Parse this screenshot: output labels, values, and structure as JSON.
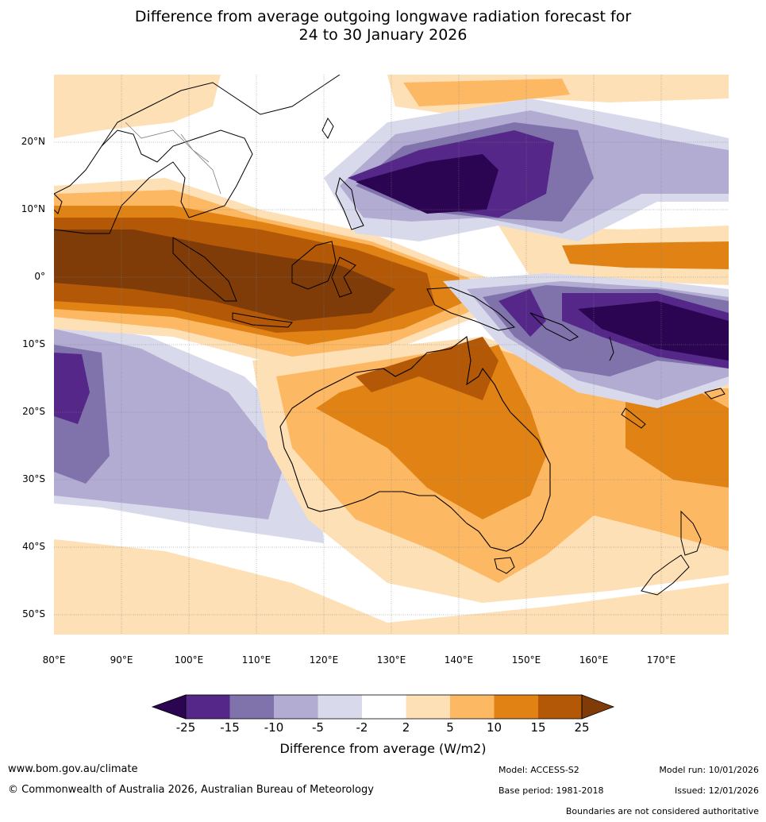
{
  "title": {
    "line1": "Difference from average outgoing longwave radiation forecast for",
    "line2": "24 to 30 January 2026"
  },
  "map": {
    "lat_labels": [
      "20°N",
      "10°N",
      "0°",
      "10°S",
      "20°S",
      "30°S",
      "40°S",
      "50°S"
    ],
    "lon_labels": [
      "80°E",
      "90°E",
      "100°E",
      "110°E",
      "120°E",
      "130°E",
      "140°E",
      "150°E",
      "160°E",
      "170°E"
    ],
    "lat_range": [
      -55,
      30
    ],
    "lon_range": [
      80,
      180
    ]
  },
  "legend": {
    "ticks": [
      "-25",
      "-15",
      "-10",
      "-5",
      "-2",
      "2",
      "5",
      "10",
      "15",
      "25"
    ],
    "colors": {
      "below_-25": "#2c0552",
      "-25_-15": "#542788",
      "-15_-10": "#8073ac",
      "-10_-5": "#b2abd2",
      "-5_-2": "#d8daeb",
      "-2_2": "#ffffff",
      "2_5": "#fee0b6",
      "5_10": "#fdb863",
      "10_15": "#e08214",
      "15_25": "#b35806",
      "above_25": "#7f3b08"
    },
    "label": "Difference from average (W/m2)"
  },
  "footer": {
    "website": "www.bom.gov.au/climate",
    "copyright": "© Commonwealth of Australia 2026, Australian Bureau of Meteorology",
    "model": "Model: ACCESS-S2",
    "base_period": "Base period: 1981-2018",
    "model_run": "Model run: 10/01/2026",
    "issued": "Issued: 12/01/2026",
    "disclaimer": "Boundaries are not considered authoritative"
  }
}
